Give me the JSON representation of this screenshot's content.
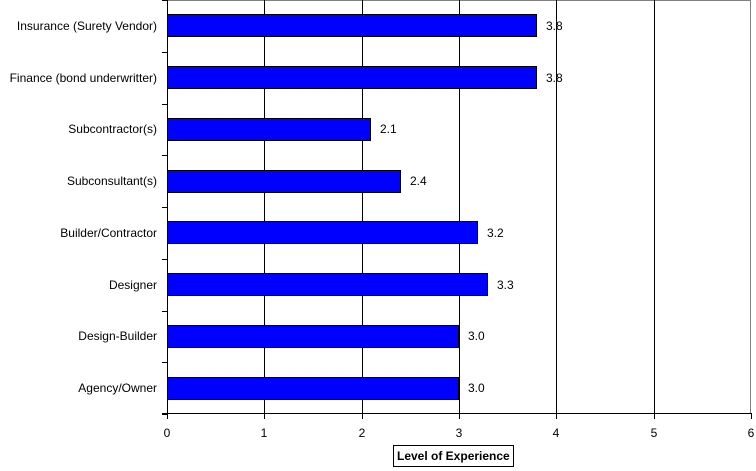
{
  "chart_data": {
    "type": "bar",
    "orientation": "horizontal",
    "title": "",
    "xlabel": "Level of Experience",
    "ylabel": "",
    "xlim": [
      0,
      6
    ],
    "x_ticks": [
      "0",
      "1",
      "2",
      "3",
      "4",
      "5",
      "6"
    ],
    "grid": "vertical major gridlines",
    "legend": "none",
    "bar_color": "#0000ff",
    "categories": [
      "Insurance (Surety Vendor)",
      "Finance (bond underwritter)",
      "Subcontractor(s)",
      "Subconsultant(s)",
      "Builder/Contractor",
      "Designer",
      "Design-Builder",
      "Agency/Owner"
    ],
    "values": [
      3.8,
      3.8,
      2.1,
      2.4,
      3.2,
      3.3,
      3.0,
      3.0
    ],
    "value_labels": [
      "3.8",
      "3.8",
      "2.1",
      "2.4",
      "3.2",
      "3.3",
      "3.0",
      "3.0"
    ]
  }
}
